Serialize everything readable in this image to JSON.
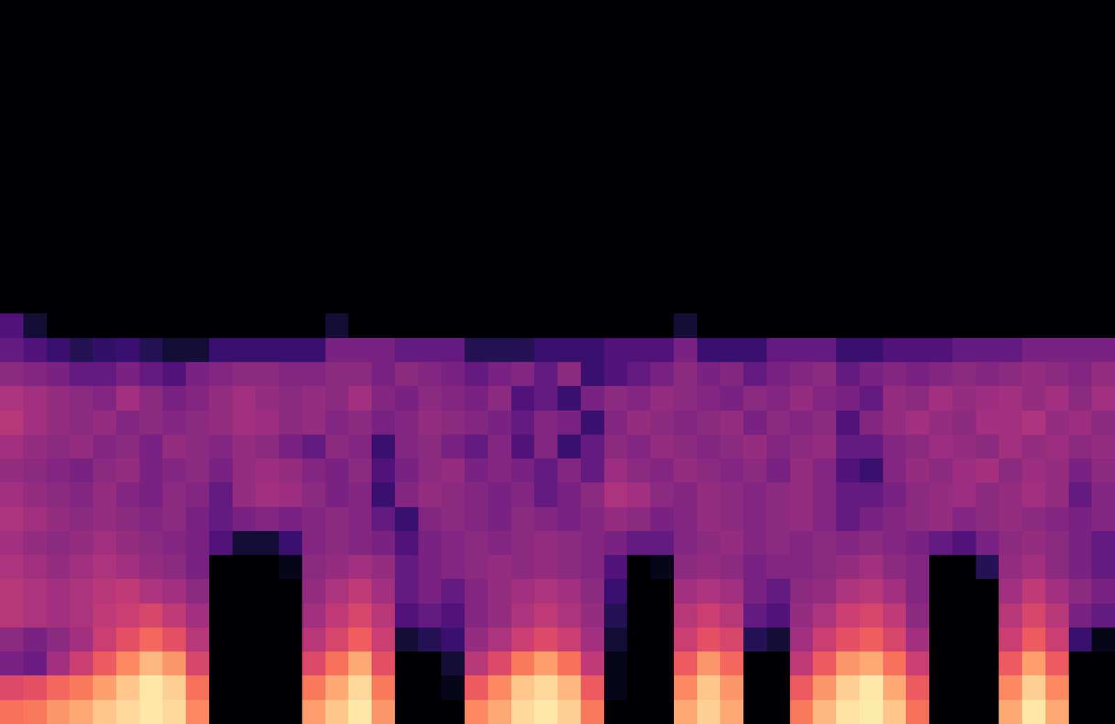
{
  "chart_data": {
    "type": "heatmap",
    "color": "magma",
    "zlim": [
      0,
      100
    ],
    "tick_labels": false,
    "cells": [
      [
        0,
        0,
        0,
        0,
        0,
        0,
        0,
        0,
        0,
        0,
        0,
        0,
        0,
        0,
        0,
        0,
        0,
        0,
        0,
        0,
        0,
        0,
        0,
        0,
        0,
        0,
        0,
        0,
        0,
        0,
        0,
        0,
        0,
        0,
        0,
        0,
        0,
        0,
        0,
        0,
        0,
        0,
        0,
        0,
        0,
        0,
        0,
        0
      ],
      [
        0,
        0,
        0,
        0,
        0,
        0,
        0,
        0,
        0,
        0,
        0,
        0,
        0,
        0,
        0,
        0,
        0,
        0,
        0,
        0,
        0,
        0,
        0,
        0,
        0,
        0,
        0,
        0,
        0,
        0,
        0,
        0,
        0,
        0,
        0,
        0,
        0,
        0,
        0,
        0,
        0,
        0,
        0,
        0,
        0,
        0,
        0,
        0
      ],
      [
        0,
        0,
        0,
        0,
        0,
        0,
        0,
        0,
        0,
        0,
        0,
        0,
        0,
        0,
        0,
        0,
        0,
        0,
        0,
        0,
        0,
        0,
        0,
        0,
        0,
        0,
        0,
        0,
        0,
        0,
        0,
        0,
        0,
        0,
        0,
        0,
        0,
        0,
        0,
        0,
        0,
        0,
        0,
        0,
        0,
        0,
        0,
        0
      ],
      [
        0,
        0,
        0,
        0,
        0,
        0,
        0,
        0,
        0,
        0,
        0,
        0,
        0,
        0,
        0,
        0,
        0,
        0,
        0,
        0,
        0,
        0,
        0,
        0,
        0,
        0,
        0,
        0,
        0,
        0,
        0,
        0,
        0,
        0,
        0,
        0,
        0,
        0,
        0,
        0,
        0,
        0,
        0,
        0,
        0,
        0,
        0,
        0
      ],
      [
        0,
        0,
        0,
        0,
        0,
        0,
        0,
        0,
        0,
        0,
        0,
        0,
        0,
        0,
        0,
        0,
        0,
        0,
        0,
        0,
        0,
        0,
        0,
        0,
        0,
        0,
        0,
        0,
        0,
        0,
        0,
        0,
        0,
        0,
        0,
        0,
        0,
        0,
        0,
        0,
        0,
        0,
        0,
        0,
        0,
        0,
        0,
        0
      ],
      [
        0,
        0,
        0,
        0,
        0,
        0,
        0,
        0,
        0,
        0,
        0,
        0,
        0,
        0,
        0,
        0,
        0,
        0,
        0,
        0,
        0,
        0,
        0,
        0,
        0,
        0,
        0,
        0,
        0,
        0,
        0,
        0,
        0,
        0,
        0,
        0,
        0,
        0,
        0,
        0,
        0,
        0,
        0,
        0,
        0,
        0,
        0,
        0
      ],
      [
        0,
        0,
        0,
        0,
        0,
        0,
        0,
        0,
        0,
        0,
        0,
        0,
        0,
        0,
        0,
        0,
        0,
        0,
        0,
        0,
        0,
        0,
        0,
        0,
        0,
        0,
        0,
        0,
        0,
        0,
        0,
        0,
        0,
        0,
        0,
        0,
        0,
        0,
        0,
        0,
        0,
        0,
        0,
        0,
        0,
        0,
        0,
        0
      ],
      [
        0,
        0,
        0,
        0,
        0,
        0,
        0,
        0,
        0,
        0,
        0,
        0,
        0,
        0,
        0,
        0,
        0,
        0,
        0,
        0,
        0,
        0,
        0,
        0,
        0,
        0,
        0,
        0,
        0,
        0,
        0,
        0,
        0,
        0,
        0,
        0,
        0,
        0,
        0,
        0,
        0,
        0,
        0,
        0,
        0,
        0,
        0,
        0
      ],
      [
        0,
        0,
        0,
        0,
        0,
        0,
        0,
        0,
        0,
        0,
        0,
        0,
        0,
        0,
        0,
        0,
        0,
        0,
        0,
        0,
        0,
        0,
        0,
        0,
        0,
        0,
        0,
        0,
        0,
        0,
        0,
        0,
        0,
        0,
        0,
        0,
        0,
        0,
        0,
        0,
        0,
        0,
        0,
        0,
        0,
        0,
        0,
        0
      ],
      [
        0,
        0,
        0,
        0,
        0,
        0,
        0,
        0,
        0,
        0,
        0,
        0,
        0,
        0,
        0,
        0,
        0,
        0,
        0,
        0,
        0,
        0,
        0,
        0,
        0,
        0,
        0,
        0,
        0,
        0,
        0,
        0,
        0,
        0,
        0,
        0,
        0,
        0,
        0,
        0,
        0,
        0,
        0,
        0,
        0,
        0,
        0,
        0
      ],
      [
        0,
        0,
        0,
        0,
        0,
        0,
        0,
        0,
        0,
        0,
        0,
        0,
        0,
        0,
        0,
        0,
        0,
        0,
        0,
        0,
        0,
        0,
        0,
        0,
        0,
        0,
        0,
        0,
        0,
        0,
        0,
        0,
        0,
        0,
        0,
        0,
        0,
        0,
        0,
        0,
        0,
        0,
        0,
        0,
        0,
        0,
        0,
        0
      ],
      [
        0,
        0,
        0,
        0,
        0,
        0,
        0,
        0,
        0,
        0,
        0,
        0,
        0,
        0,
        0,
        0,
        0,
        0,
        0,
        0,
        0,
        0,
        0,
        0,
        0,
        0,
        0,
        0,
        0,
        0,
        0,
        0,
        0,
        0,
        0,
        0,
        0,
        0,
        0,
        0,
        0,
        0,
        0,
        0,
        0,
        0,
        0,
        0
      ],
      [
        0,
        0,
        0,
        0,
        0,
        0,
        0,
        0,
        0,
        0,
        0,
        0,
        0,
        0,
        0,
        0,
        0,
        0,
        0,
        0,
        0,
        0,
        0,
        0,
        0,
        0,
        0,
        0,
        0,
        0,
        0,
        0,
        0,
        0,
        0,
        0,
        0,
        0,
        0,
        0,
        0,
        0,
        0,
        0,
        0,
        0,
        0,
        0
      ],
      [
        25,
        10,
        0,
        0,
        0,
        0,
        0,
        0,
        0,
        0,
        0,
        0,
        0,
        0,
        10,
        0,
        0,
        0,
        0,
        0,
        0,
        0,
        0,
        0,
        0,
        0,
        0,
        0,
        0,
        10,
        0,
        0,
        0,
        0,
        0,
        0,
        0,
        0,
        0,
        0,
        0,
        0,
        0,
        0,
        0,
        0,
        0,
        0
      ],
      [
        30,
        25,
        20,
        15,
        18,
        20,
        15,
        10,
        10,
        20,
        20,
        20,
        20,
        20,
        35,
        35,
        35,
        30,
        30,
        30,
        15,
        15,
        15,
        20,
        20,
        20,
        25,
        25,
        25,
        35,
        20,
        20,
        20,
        30,
        30,
        30,
        20,
        20,
        25,
        25,
        25,
        30,
        30,
        30,
        35,
        35,
        35,
        35
      ],
      [
        40,
        38,
        35,
        30,
        30,
        35,
        30,
        25,
        35,
        38,
        40,
        40,
        38,
        38,
        40,
        40,
        35,
        40,
        38,
        35,
        30,
        35,
        38,
        30,
        40,
        20,
        25,
        30,
        35,
        40,
        35,
        38,
        30,
        35,
        38,
        40,
        30,
        35,
        38,
        35,
        38,
        40,
        38,
        40,
        42,
        40,
        38,
        42
      ],
      [
        48,
        45,
        42,
        40,
        38,
        45,
        40,
        35,
        38,
        42,
        45,
        42,
        40,
        42,
        40,
        45,
        38,
        35,
        40,
        38,
        35,
        40,
        25,
        30,
        20,
        35,
        40,
        38,
        42,
        40,
        38,
        35,
        40,
        38,
        42,
        38,
        35,
        30,
        42,
        40,
        45,
        42,
        44,
        45,
        42,
        45,
        40,
        45
      ],
      [
        50,
        45,
        42,
        40,
        42,
        38,
        40,
        38,
        40,
        42,
        45,
        44,
        40,
        42,
        38,
        40,
        35,
        38,
        42,
        40,
        38,
        35,
        30,
        38,
        35,
        20,
        38,
        42,
        40,
        38,
        40,
        42,
        35,
        40,
        38,
        40,
        25,
        38,
        42,
        45,
        42,
        40,
        45,
        45,
        48,
        42,
        44,
        40
      ],
      [
        45,
        42,
        40,
        42,
        38,
        40,
        35,
        42,
        40,
        38,
        42,
        40,
        35,
        30,
        40,
        38,
        20,
        38,
        40,
        35,
        30,
        38,
        25,
        38,
        20,
        30,
        40,
        38,
        42,
        40,
        38,
        40,
        42,
        38,
        40,
        42,
        30,
        30,
        38,
        40,
        44,
        42,
        40,
        45,
        42,
        44,
        40,
        42
      ],
      [
        42,
        40,
        38,
        35,
        40,
        42,
        35,
        38,
        40,
        35,
        42,
        44,
        42,
        38,
        35,
        40,
        25,
        35,
        40,
        42,
        35,
        38,
        35,
        30,
        38,
        30,
        44,
        40,
        38,
        42,
        40,
        38,
        40,
        35,
        42,
        38,
        25,
        20,
        38,
        42,
        40,
        44,
        46,
        40,
        44,
        42,
        35,
        40
      ],
      [
        45,
        42,
        40,
        38,
        42,
        38,
        35,
        40,
        38,
        30,
        42,
        45,
        44,
        40,
        35,
        38,
        20,
        38,
        42,
        40,
        38,
        35,
        38,
        30,
        35,
        40,
        48,
        45,
        40,
        38,
        42,
        40,
        38,
        40,
        42,
        38,
        30,
        30,
        35,
        40,
        42,
        44,
        40,
        42,
        45,
        42,
        30,
        38
      ],
      [
        48,
        45,
        42,
        40,
        42,
        40,
        38,
        40,
        35,
        30,
        35,
        38,
        35,
        38,
        40,
        38,
        30,
        20,
        38,
        40,
        38,
        35,
        40,
        38,
        35,
        38,
        42,
        40,
        35,
        38,
        42,
        40,
        38,
        40,
        42,
        38,
        30,
        35,
        38,
        40,
        42,
        38,
        40,
        42,
        40,
        38,
        35,
        38
      ],
      [
        45,
        42,
        40,
        42,
        45,
        42,
        40,
        38,
        35,
        25,
        10,
        10,
        20,
        38,
        40,
        38,
        35,
        25,
        35,
        38,
        40,
        38,
        40,
        42,
        40,
        38,
        35,
        30,
        30,
        38,
        40,
        42,
        38,
        40,
        38,
        40,
        38,
        40,
        38,
        35,
        30,
        25,
        35,
        40,
        42,
        40,
        35,
        30
      ],
      [
        48,
        45,
        42,
        45,
        48,
        45,
        42,
        40,
        35,
        0,
        0,
        0,
        5,
        40,
        42,
        45,
        42,
        30,
        35,
        38,
        40,
        42,
        40,
        42,
        40,
        38,
        25,
        0,
        5,
        40,
        42,
        40,
        35,
        38,
        38,
        40,
        42,
        45,
        40,
        38,
        0,
        0,
        15,
        42,
        45,
        40,
        35,
        30
      ],
      [
        50,
        48,
        45,
        48,
        50,
        52,
        48,
        45,
        40,
        0,
        0,
        0,
        0,
        42,
        48,
        52,
        45,
        30,
        35,
        30,
        38,
        42,
        45,
        48,
        45,
        40,
        20,
        0,
        0,
        45,
        48,
        45,
        35,
        30,
        40,
        42,
        48,
        50,
        45,
        38,
        0,
        0,
        0,
        45,
        52,
        45,
        40,
        35
      ],
      [
        50,
        48,
        45,
        48,
        52,
        55,
        58,
        52,
        45,
        0,
        0,
        0,
        0,
        45,
        52,
        58,
        50,
        25,
        30,
        25,
        38,
        42,
        48,
        52,
        48,
        42,
        15,
        0,
        0,
        50,
        55,
        50,
        30,
        25,
        42,
        48,
        55,
        58,
        52,
        40,
        0,
        0,
        0,
        50,
        58,
        50,
        35,
        30
      ],
      [
        40,
        35,
        40,
        45,
        55,
        62,
        68,
        62,
        50,
        0,
        0,
        0,
        0,
        50,
        58,
        66,
        55,
        10,
        15,
        20,
        42,
        48,
        55,
        60,
        55,
        45,
        10,
        0,
        0,
        55,
        62,
        58,
        15,
        10,
        45,
        55,
        62,
        66,
        58,
        45,
        0,
        0,
        0,
        55,
        65,
        55,
        20,
        5
      ],
      [
        35,
        32,
        45,
        55,
        65,
        75,
        85,
        78,
        58,
        0,
        0,
        0,
        0,
        60,
        70,
        82,
        62,
        0,
        0,
        10,
        50,
        60,
        72,
        80,
        70,
        52,
        5,
        0,
        0,
        65,
        78,
        68,
        0,
        0,
        52,
        65,
        78,
        82,
        70,
        55,
        0,
        0,
        0,
        65,
        80,
        65,
        0,
        0
      ],
      [
        60,
        62,
        68,
        72,
        80,
        88,
        95,
        90,
        70,
        0,
        0,
        0,
        0,
        72,
        82,
        92,
        72,
        0,
        0,
        5,
        65,
        75,
        88,
        92,
        85,
        65,
        5,
        0,
        0,
        75,
        88,
        78,
        0,
        0,
        65,
        78,
        90,
        95,
        82,
        65,
        0,
        0,
        0,
        75,
        90,
        75,
        0,
        0
      ],
      [
        70,
        72,
        78,
        82,
        88,
        92,
        95,
        92,
        75,
        0,
        0,
        0,
        0,
        80,
        88,
        95,
        78,
        0,
        0,
        0,
        75,
        82,
        92,
        95,
        90,
        72,
        0,
        0,
        0,
        82,
        90,
        82,
        0,
        0,
        72,
        85,
        94,
        96,
        88,
        70,
        0,
        0,
        0,
        82,
        95,
        82,
        0,
        0
      ]
    ]
  }
}
